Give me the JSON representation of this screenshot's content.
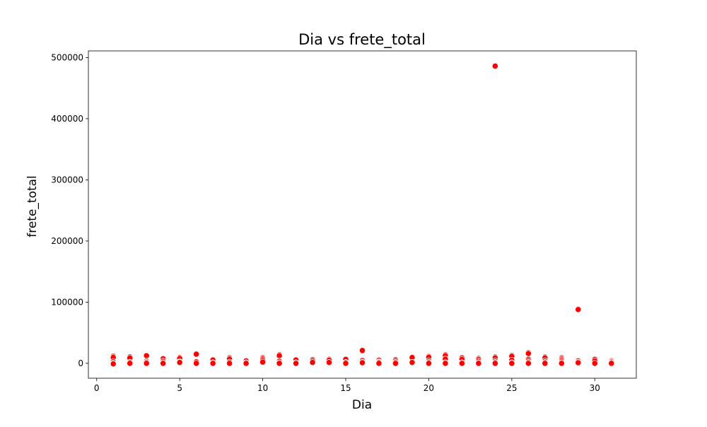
{
  "chart_data": {
    "type": "scatter",
    "title": "Dia vs frete_total",
    "xlabel": "Dia",
    "ylabel": "frete_total",
    "xlim": [
      -0.5,
      32.5
    ],
    "ylim": [
      -24350,
      510840
    ],
    "xticks": [
      0,
      5,
      10,
      15,
      20,
      25,
      30
    ],
    "yticks": [
      0,
      100000,
      200000,
      300000,
      400000,
      500000
    ],
    "xtick_labels": [
      "0",
      "5",
      "10",
      "15",
      "20",
      "25",
      "30"
    ],
    "ytick_labels": [
      "0",
      "100000",
      "200000",
      "300000",
      "400000",
      "500000"
    ],
    "grid": false,
    "point_color": "#ff0000",
    "point_edge_color": "#ffffff",
    "series": [
      {
        "points": [
          [
            1,
            11500
          ],
          [
            1,
            9500
          ],
          [
            1,
            2500
          ],
          [
            1,
            0
          ],
          [
            1,
            -800
          ],
          [
            2,
            10500
          ],
          [
            2,
            8800
          ],
          [
            2,
            1500
          ],
          [
            2,
            0
          ],
          [
            3,
            12500
          ],
          [
            3,
            3500
          ],
          [
            3,
            1500
          ],
          [
            3,
            0
          ],
          [
            4,
            7500
          ],
          [
            4,
            3500
          ],
          [
            4,
            1000
          ],
          [
            4,
            0
          ],
          [
            5,
            9500
          ],
          [
            5,
            8000
          ],
          [
            5,
            2500
          ],
          [
            5,
            1500
          ],
          [
            6,
            15000
          ],
          [
            6,
            2500
          ],
          [
            6,
            0
          ],
          [
            7,
            5500
          ],
          [
            7,
            1000
          ],
          [
            7,
            0
          ],
          [
            8,
            9000
          ],
          [
            8,
            7000
          ],
          [
            8,
            2000
          ],
          [
            8,
            0
          ],
          [
            9,
            4000
          ],
          [
            9,
            1000
          ],
          [
            9,
            0
          ],
          [
            10,
            9000
          ],
          [
            10,
            7000
          ],
          [
            10,
            4500
          ],
          [
            10,
            2000
          ],
          [
            11,
            14000
          ],
          [
            11,
            12500
          ],
          [
            11,
            3500
          ],
          [
            11,
            1000
          ],
          [
            11,
            0
          ],
          [
            12,
            5500
          ],
          [
            12,
            1000
          ],
          [
            12,
            0
          ],
          [
            13,
            6000
          ],
          [
            13,
            4000
          ],
          [
            13,
            1500
          ],
          [
            14,
            6500
          ],
          [
            14,
            5000
          ],
          [
            14,
            1500
          ],
          [
            15,
            6500
          ],
          [
            15,
            1500
          ],
          [
            15,
            0
          ],
          [
            16,
            21000
          ],
          [
            16,
            4500
          ],
          [
            16,
            2000
          ],
          [
            16,
            1000
          ],
          [
            17,
            5000
          ],
          [
            17,
            2500
          ],
          [
            17,
            1500
          ],
          [
            17,
            0
          ],
          [
            18,
            6000
          ],
          [
            18,
            4000
          ],
          [
            18,
            1500
          ],
          [
            18,
            0
          ],
          [
            19,
            10000
          ],
          [
            19,
            9500
          ],
          [
            19,
            1500
          ],
          [
            20,
            11500
          ],
          [
            20,
            10000
          ],
          [
            20,
            4000
          ],
          [
            20,
            1500
          ],
          [
            20,
            0
          ],
          [
            21,
            14000
          ],
          [
            21,
            12500
          ],
          [
            21,
            7000
          ],
          [
            21,
            1000
          ],
          [
            21,
            0
          ],
          [
            22,
            9000
          ],
          [
            22,
            6500
          ],
          [
            22,
            1000
          ],
          [
            22,
            0
          ],
          [
            23,
            8000
          ],
          [
            23,
            6500
          ],
          [
            23,
            3500
          ],
          [
            23,
            1000
          ],
          [
            23,
            0
          ],
          [
            24,
            486000
          ],
          [
            24,
            10500
          ],
          [
            24,
            9000
          ],
          [
            24,
            4000
          ],
          [
            24,
            1500
          ],
          [
            24,
            0
          ],
          [
            25,
            13000
          ],
          [
            25,
            11500
          ],
          [
            25,
            5000
          ],
          [
            25,
            1000
          ],
          [
            25,
            0
          ],
          [
            26,
            17500
          ],
          [
            26,
            16000
          ],
          [
            26,
            6500
          ],
          [
            26,
            4000
          ],
          [
            26,
            1500
          ],
          [
            26,
            0
          ],
          [
            27,
            10500
          ],
          [
            27,
            9000
          ],
          [
            27,
            4000
          ],
          [
            27,
            1500
          ],
          [
            27,
            0
          ],
          [
            28,
            9000
          ],
          [
            28,
            7000
          ],
          [
            28,
            5000
          ],
          [
            28,
            3000
          ],
          [
            28,
            1000
          ],
          [
            28,
            0
          ],
          [
            29,
            88000
          ],
          [
            29,
            4000
          ],
          [
            29,
            2000
          ],
          [
            29,
            1000
          ],
          [
            30,
            6500
          ],
          [
            30,
            4000
          ],
          [
            30,
            0
          ],
          [
            31,
            4000
          ],
          [
            31,
            2500
          ],
          [
            31,
            1000
          ],
          [
            31,
            0
          ]
        ]
      }
    ]
  }
}
